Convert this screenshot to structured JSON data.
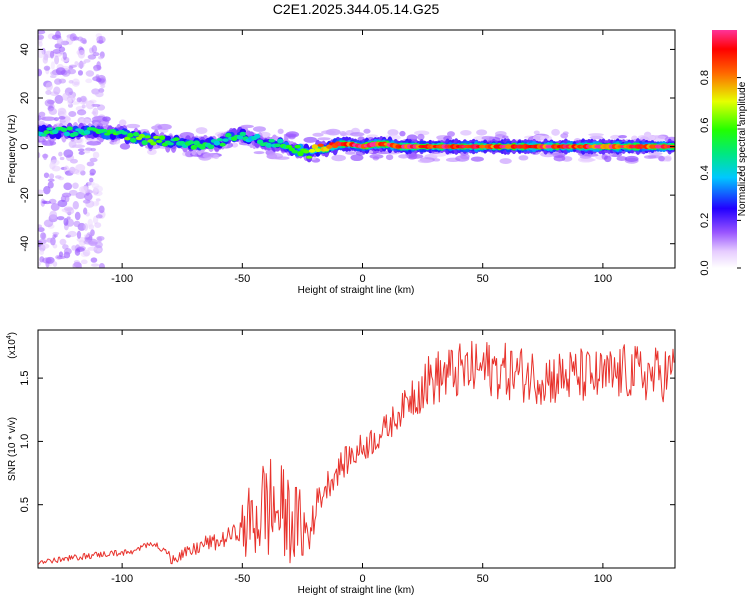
{
  "figure_title": "C2E1.2025.344.05.14.G25",
  "chart_data": [
    {
      "type": "heatmap",
      "title": "C2E1.2025.344.05.14.G25",
      "xlabel": "Height of straight line (km)",
      "ylabel": "Frequency (Hz)",
      "xlim": [
        -135,
        130
      ],
      "ylim": [
        -50,
        48
      ],
      "xticks": [
        -100,
        -50,
        0,
        50,
        100
      ],
      "yticks": [
        -40,
        -20,
        0,
        20,
        40
      ],
      "colorbar": {
        "label": "Normalized spectral amplitude",
        "range": [
          0.0,
          1.0
        ],
        "ticks": [
          "0.0",
          "0.2",
          "0.4",
          "0.6",
          "0.8"
        ]
      },
      "ridge": {
        "x": [
          -135,
          -110,
          -100,
          -90,
          -80,
          -70,
          -60,
          -55,
          -50,
          -45,
          -40,
          -35,
          -30,
          -25,
          -22,
          -20,
          -15,
          -10,
          -5,
          0,
          5,
          10,
          15,
          20,
          30,
          40,
          50,
          60,
          70,
          80,
          90,
          100,
          110,
          120,
          130
        ],
        "freq": [
          6,
          6,
          5,
          3,
          2,
          1,
          1,
          4,
          5,
          3,
          2,
          1,
          0,
          -2,
          -3,
          -1,
          0,
          1,
          1,
          0,
          1,
          1,
          0,
          0,
          0,
          0,
          0,
          0,
          0,
          0,
          0,
          0,
          0,
          0,
          0
        ],
        "amplitude": [
          0.45,
          0.5,
          0.55,
          0.6,
          0.5,
          0.5,
          0.45,
          0.5,
          0.45,
          0.4,
          0.45,
          0.5,
          0.55,
          0.6,
          0.6,
          0.7,
          0.8,
          0.85,
          0.9,
          0.95,
          0.95,
          0.9,
          0.95,
          0.9,
          0.9,
          0.88,
          0.88,
          0.9,
          0.9,
          0.88,
          0.88,
          0.9,
          0.88,
          0.9,
          0.88
        ]
      }
    },
    {
      "type": "line",
      "xlabel": "Height of straight line (km)",
      "ylabel": "SNR (10 * v/v)",
      "y_multiplier": "(x10",
      "y_multiplier_exp": "4",
      "xlim": [
        -135,
        130
      ],
      "ylim": [
        0.0,
        1.88
      ],
      "xticks": [
        -100,
        -50,
        0,
        50,
        100
      ],
      "yticks": [
        0.5,
        1.0,
        1.5
      ],
      "ytick_labels": [
        "0.5",
        "1.0",
        "1.5"
      ],
      "color": "#e8332d",
      "series": [
        {
          "name": "SNR",
          "x": [
            -135,
            -125,
            -115,
            -105,
            -95,
            -88,
            -80,
            -72,
            -65,
            -60,
            -55,
            -50,
            -45,
            -40,
            -35,
            -30,
            -25,
            -22,
            -20,
            -15,
            -10,
            -5,
            0,
            5,
            10,
            15,
            20,
            25,
            30,
            40,
            50,
            60,
            70,
            80,
            90,
            100,
            110,
            120,
            130
          ],
          "y": [
            0.02,
            0.04,
            0.07,
            0.09,
            0.1,
            0.18,
            0.08,
            0.12,
            0.2,
            0.2,
            0.26,
            0.3,
            0.38,
            0.5,
            0.45,
            0.38,
            0.32,
            0.22,
            0.48,
            0.65,
            0.78,
            0.88,
            0.95,
            1.02,
            1.1,
            1.22,
            1.35,
            1.45,
            1.5,
            1.55,
            1.58,
            1.55,
            1.52,
            1.5,
            1.52,
            1.5,
            1.55,
            1.52,
            1.55
          ]
        }
      ]
    }
  ]
}
